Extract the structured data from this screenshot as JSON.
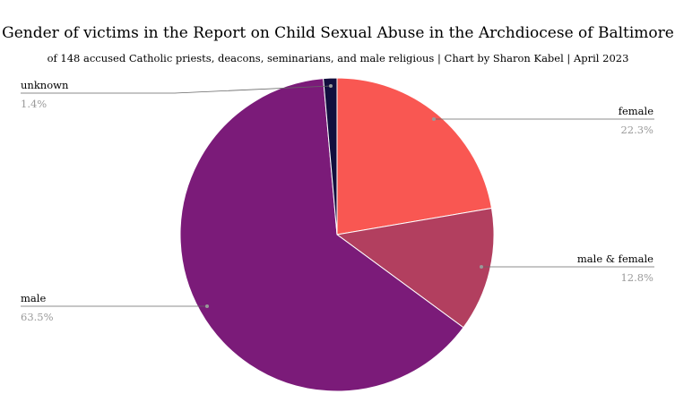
{
  "chart_data": {
    "type": "pie",
    "title": "Gender of victims in the Report on Child Sexual Abuse in the Archdiocese of Baltimore",
    "subtitle": "of 148 accused Catholic priests, deacons, seminarians, and male religious | Chart by Sharon Kabel | April 2023",
    "slices": [
      {
        "label": "female",
        "value": 22.3,
        "value_label": "22.3%",
        "color": "#f95752"
      },
      {
        "label": "male & female",
        "value": 12.8,
        "value_label": "12.8%",
        "color": "#b23f5f"
      },
      {
        "label": "male",
        "value": 63.5,
        "value_label": "63.5%",
        "color": "#7b1b79"
      },
      {
        "label": "unknown",
        "value": 1.4,
        "value_label": "1.4%",
        "color": "#120f3e"
      }
    ],
    "start_angle": "12 o'clock",
    "direction": "clockwise",
    "legend": "none"
  }
}
